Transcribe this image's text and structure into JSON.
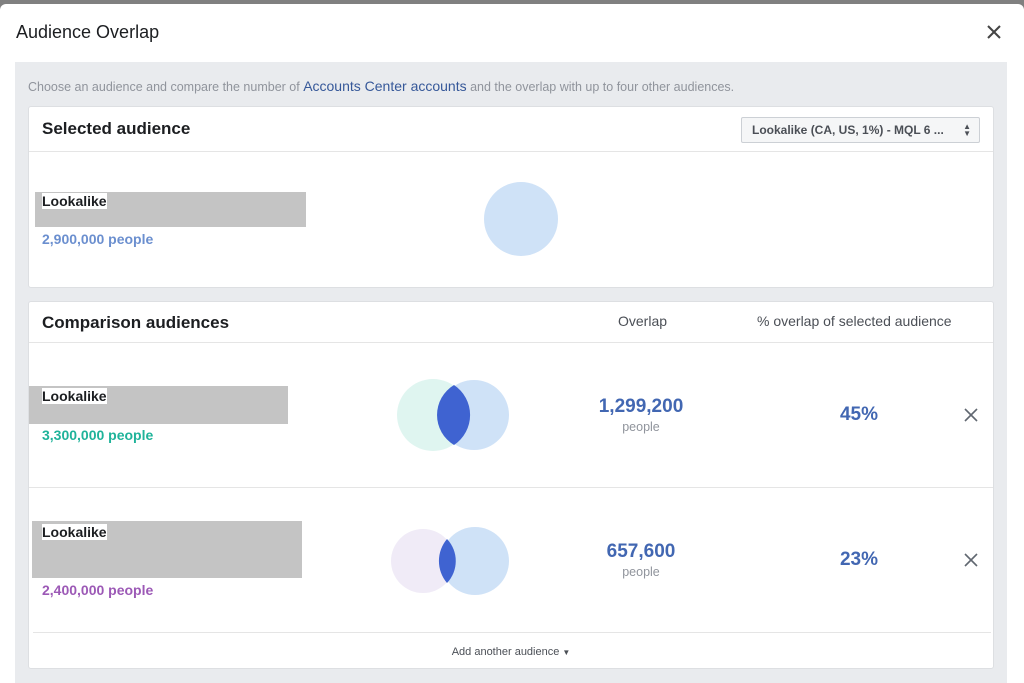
{
  "dialog": {
    "title": "Audience Overlap",
    "close_icon": "close-icon"
  },
  "intro": {
    "before": "Choose an audience and compare the number of ",
    "link": "Accounts Center accounts",
    "after": " and the overlap with up to four other audiences."
  },
  "selected": {
    "title": "Selected audience",
    "dropdown_value": "Lookalike (CA, US, 1%) - MQL 6 ...",
    "audience": {
      "name": "Lookalike",
      "count": "2,900,000 people",
      "color": "#6b8fcf"
    },
    "circle_color": "#cfe2f7"
  },
  "comparison": {
    "title": "Comparison audiences",
    "col_overlap": "Overlap",
    "col_pct": "% overlap of selected audience",
    "rows": [
      {
        "name": "Lookalike",
        "count": "3,300,000 people",
        "count_color": "#1fb39a",
        "overlap": "1,299,200",
        "overlap_unit": "people",
        "pct": "45%",
        "pct_value": 45,
        "circle_color": "#dff5f0"
      },
      {
        "name": "Lookalike",
        "count": "2,400,000 people",
        "count_color": "#9c59b6",
        "overlap": "657,600",
        "overlap_unit": "people",
        "pct": "23%",
        "pct_value": 23,
        "circle_color": "#f0ebf7"
      }
    ],
    "add_label": "Add another audience"
  },
  "colors": {
    "accent": "#4267b2",
    "selected_circle": "#cfe2f7",
    "intersection": "#3f63d1"
  }
}
